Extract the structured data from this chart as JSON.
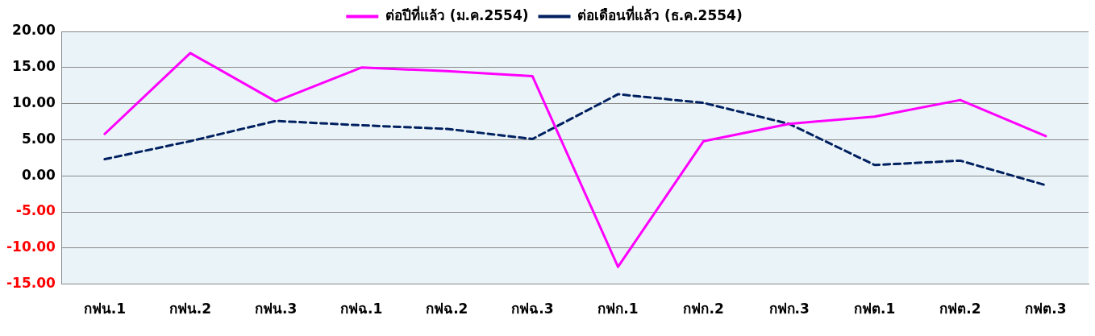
{
  "chart_data": {
    "type": "line",
    "categories": [
      "กฟน.1",
      "กฟน.2",
      "กฟน.3",
      "กฟฉ.1",
      "กฟฉ.2",
      "กฟฉ.3",
      "กฟก.1",
      "กฟก.2",
      "กฟก.3",
      "กฟต.1",
      "กฟต.2",
      "กฟต.3"
    ],
    "series": [
      {
        "name": "ต่อปีที่แล้ว (ม.ค.2554)",
        "color": "#ff00ff",
        "line_style": "solid",
        "values": [
          5.8,
          17.0,
          10.3,
          15.0,
          14.5,
          13.8,
          -12.6,
          4.8,
          7.2,
          8.2,
          10.5,
          5.5
        ]
      },
      {
        "name": "ต่อเดือนที่แล้ว (ธ.ค.2554)",
        "color": "#002060",
        "line_style": "dashed",
        "values": [
          2.3,
          4.8,
          7.6,
          7.0,
          6.5,
          5.1,
          11.3,
          10.1,
          7.2,
          1.5,
          2.1,
          -1.3
        ]
      }
    ],
    "ylim": [
      -15,
      20
    ],
    "yticks": [
      {
        "value": -15,
        "label": "-15.00"
      },
      {
        "value": -10,
        "label": "-10.00"
      },
      {
        "value": -5,
        "label": "-5.00"
      },
      {
        "value": 0,
        "label": "0.00"
      },
      {
        "value": 5,
        "label": "5.00"
      },
      {
        "value": 10,
        "label": "10.00"
      },
      {
        "value": 15,
        "label": "15.00"
      },
      {
        "value": 20,
        "label": "20.00"
      }
    ],
    "grid": "y",
    "legend": "top",
    "marker": "none"
  }
}
